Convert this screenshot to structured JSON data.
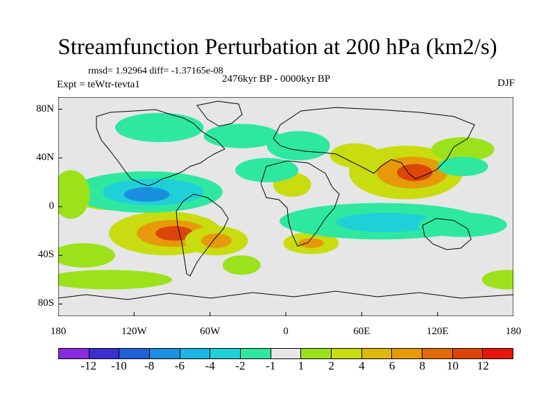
{
  "header": {
    "title": "Streamfunction Perturbation at 200 hPa (km2/s)",
    "stats": "rmsd= 1.92964 diff= -1.37165e-08",
    "period": "2476kyr BP - 0000kyr BP",
    "experiment": "Expt = teWtr-tevta1",
    "season": "DJF"
  },
  "map": {
    "projection": "cylindrical equidistant",
    "lon_range": [
      -180,
      180
    ],
    "lat_range": [
      -90,
      90
    ],
    "y_axis_labels": [
      {
        "lat": 80,
        "label": "80N"
      },
      {
        "lat": 40,
        "label": "40N"
      },
      {
        "lat": 0,
        "label": "0"
      },
      {
        "lat": -40,
        "label": "40S"
      },
      {
        "lat": -80,
        "label": "80S"
      }
    ],
    "x_axis_labels": [
      {
        "lon": -180,
        "label": "180"
      },
      {
        "lon": -120,
        "label": "120W"
      },
      {
        "lon": -60,
        "label": "60W"
      },
      {
        "lon": 0,
        "label": "0"
      },
      {
        "lon": 60,
        "label": "60E"
      },
      {
        "lon": 120,
        "label": "120E"
      },
      {
        "lon": 180,
        "label": "180"
      }
    ]
  },
  "colorbar": {
    "colors": [
      "#8a2be2",
      "#3a2fd0",
      "#1f5fd8",
      "#1a8fe0",
      "#1cb5e8",
      "#20d0d8",
      "#2ee8a0",
      "#e6e6e6",
      "#9be21a",
      "#c8dc10",
      "#e0b80c",
      "#e69a0a",
      "#e06a08",
      "#dc4408",
      "#e8160a"
    ],
    "labels": [
      "-12",
      "-10",
      "-8",
      "-6",
      "-4",
      "-2",
      "-1",
      "1",
      "2",
      "4",
      "6",
      "8",
      "10",
      "12"
    ]
  },
  "fields": [
    {
      "name": "pos",
      "lon": 95,
      "lat": 28,
      "rx": 45,
      "ry": 22,
      "level": 2
    },
    {
      "name": "pos",
      "lon": 100,
      "lat": 28,
      "rx": 28,
      "ry": 13,
      "level": 4
    },
    {
      "name": "pos",
      "lon": 102,
      "lat": 28,
      "rx": 14,
      "ry": 7,
      "level": 6
    },
    {
      "name": "pos",
      "lon": -95,
      "lat": -22,
      "rx": 45,
      "ry": 18,
      "level": 2
    },
    {
      "name": "pos",
      "lon": -90,
      "lat": -22,
      "rx": 28,
      "ry": 11,
      "level": 4
    },
    {
      "name": "pos",
      "lon": -88,
      "lat": -22,
      "rx": 15,
      "ry": 6,
      "level": 6
    },
    {
      "name": "pos",
      "lon": -55,
      "lat": -28,
      "rx": 25,
      "ry": 12,
      "level": 2
    },
    {
      "name": "pos",
      "lon": -55,
      "lat": -28,
      "rx": 12,
      "ry": 6,
      "level": 4
    },
    {
      "name": "pos",
      "lon": 20,
      "lat": -30,
      "rx": 22,
      "ry": 9,
      "level": 2
    },
    {
      "name": "pos",
      "lon": 20,
      "lat": -30,
      "rx": 10,
      "ry": 4,
      "level": 4
    },
    {
      "name": "pos",
      "lon": 5,
      "lat": 18,
      "rx": 15,
      "ry": 10,
      "level": 2
    },
    {
      "name": "pos",
      "lon": 55,
      "lat": 42,
      "rx": 20,
      "ry": 10,
      "level": 2
    },
    {
      "name": "pos",
      "lon": -35,
      "lat": -48,
      "rx": 15,
      "ry": 8,
      "level": 1
    },
    {
      "name": "pos",
      "lon": -135,
      "lat": 5,
      "rx": 30,
      "ry": 8,
      "level": 1
    },
    {
      "name": "pos",
      "lon": 140,
      "lat": 47,
      "rx": 25,
      "ry": 10,
      "level": 1
    },
    {
      "name": "neg",
      "lon": -110,
      "lat": 12,
      "rx": 60,
      "ry": 17,
      "level": -1
    },
    {
      "name": "neg",
      "lon": -105,
      "lat": 12,
      "rx": 40,
      "ry": 11,
      "level": -2
    },
    {
      "name": "neg",
      "lon": -110,
      "lat": 10,
      "rx": 18,
      "ry": 6,
      "level": -4
    },
    {
      "name": "neg",
      "lon": 75,
      "lat": -12,
      "rx": 80,
      "ry": 15,
      "level": -1
    },
    {
      "name": "neg",
      "lon": 80,
      "lat": -13,
      "rx": 40,
      "ry": 8,
      "level": -2
    },
    {
      "name": "neg",
      "lon": 140,
      "lat": -15,
      "rx": 35,
      "ry": 10,
      "level": -1
    },
    {
      "name": "neg",
      "lon": 10,
      "lat": 50,
      "rx": 25,
      "ry": 12,
      "level": -1
    },
    {
      "name": "neg",
      "lon": -35,
      "lat": 58,
      "rx": 30,
      "ry": 10,
      "level": -1
    },
    {
      "name": "neg",
      "lon": -15,
      "lat": 30,
      "rx": 25,
      "ry": 10,
      "level": -1
    },
    {
      "name": "neg",
      "lon": -100,
      "lat": 65,
      "rx": 35,
      "ry": 12,
      "level": -1
    },
    {
      "name": "neg",
      "lon": 140,
      "lat": 33,
      "rx": 20,
      "ry": 8,
      "level": -1
    },
    {
      "name": "pos",
      "lon": -160,
      "lat": -40,
      "rx": 25,
      "ry": 10,
      "level": 1
    },
    {
      "name": "pos",
      "lon": -140,
      "lat": -60,
      "rx": 50,
      "ry": 8,
      "level": 1
    },
    {
      "name": "pos",
      "lon": 175,
      "lat": -60,
      "rx": 20,
      "ry": 8,
      "level": 1
    },
    {
      "name": "pos",
      "lon": -170,
      "lat": 10,
      "rx": 15,
      "ry": 20,
      "level": 1
    }
  ]
}
